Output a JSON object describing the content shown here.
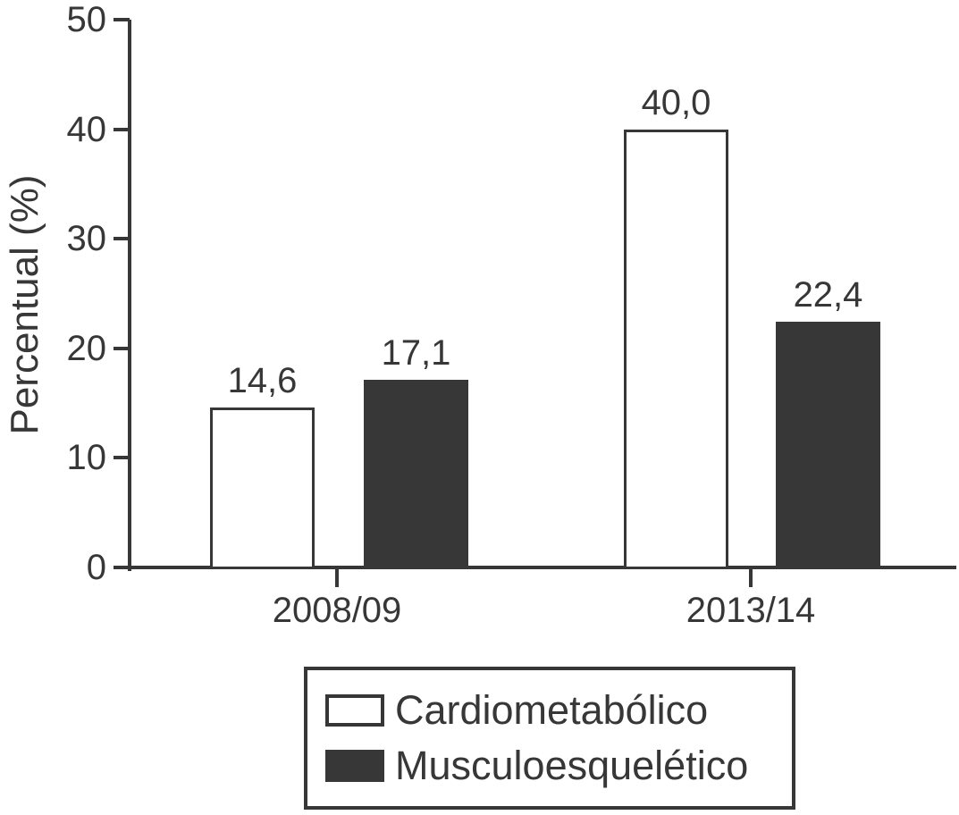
{
  "colors": {
    "ink": "#373737",
    "bar_fill_cardiometabolico": "#ffffff",
    "bar_fill_musculoesqueletico": "#373737",
    "background": "#ffffff"
  },
  "chart_data": {
    "type": "bar",
    "title": "",
    "xlabel": "",
    "ylabel": "Percentual (%)",
    "categories": [
      "2008/09",
      "2013/14"
    ],
    "series": [
      {
        "name": "Cardiometabólico",
        "values": [
          14.6,
          40.0
        ],
        "fill": "#ffffff"
      },
      {
        "name": "Musculoesquelético",
        "values": [
          17.1,
          22.4
        ],
        "fill": "#373737"
      }
    ],
    "value_labels": [
      [
        "14,6",
        "17,1"
      ],
      [
        "40,0",
        "22,4"
      ]
    ],
    "ylim": [
      0,
      50
    ],
    "yticks": [
      0,
      10,
      20,
      30,
      40,
      50
    ],
    "ytick_labels": [
      "0",
      "10",
      "20",
      "30",
      "40",
      "50"
    ],
    "grid": false,
    "legend_position": "bottom"
  }
}
